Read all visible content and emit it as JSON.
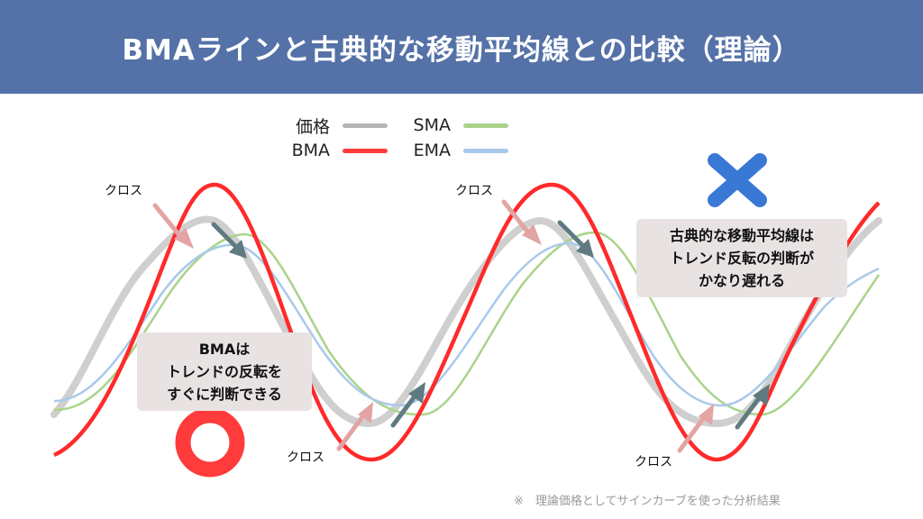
{
  "title": "BMAラインと古典的な移動平均線との比較（理論）",
  "legend": [
    {
      "label": "価格",
      "color": "#b5b5b5"
    },
    {
      "label": "SMA",
      "color": "#a9d38a"
    },
    {
      "label": "BMA",
      "color": "#ff3b3b"
    },
    {
      "label": "EMA",
      "color": "#a9c9ea"
    }
  ],
  "cross_label": "クロス",
  "note_bma": [
    "BMAは",
    "トレンドの反転を",
    "すぐに判断できる"
  ],
  "note_ma": [
    "古典的な移動平均線は",
    "トレンド反転の判断が",
    "かなり遅れる"
  ],
  "footer": "※　理論価格としてサインカーブを使った分析結果",
  "colors": {
    "banner": "#5471a8",
    "good_mark": "#ff3b3b",
    "bad_mark": "#3a78d6",
    "arrow_pink": "#e3a4a4",
    "arrow_gray": "#5f7a80"
  }
}
